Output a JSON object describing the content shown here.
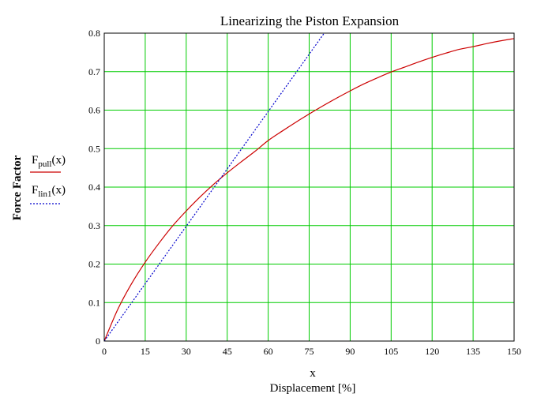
{
  "chart_data": {
    "type": "line",
    "title": "Linearizing the Piston Expansion",
    "xlabel_var": "x",
    "xlabel": "Displacement [%]",
    "ylabel": "Force Factor",
    "xlim": [
      0,
      150
    ],
    "ylim": [
      0,
      0.8
    ],
    "grid": true,
    "legend_position": "left",
    "xticks": [
      "0",
      "15",
      "30",
      "45",
      "60",
      "75",
      "90",
      "105",
      "120",
      "135",
      "150"
    ],
    "yticks": [
      "0",
      "0.1",
      "0.2",
      "0.3",
      "0.4",
      "0.5",
      "0.6",
      "0.7",
      "0.8"
    ],
    "series": [
      {
        "name_main": "F",
        "name_sub": "pull",
        "name_arg": "(x)",
        "color": "#cc0000",
        "dash": "solid",
        "x": [
          0,
          5,
          10,
          15,
          20,
          25,
          30,
          35,
          40,
          45,
          50,
          55,
          60,
          65,
          70,
          75,
          80,
          85,
          90,
          95,
          100,
          105,
          110,
          115,
          120,
          125,
          130,
          135,
          140,
          145,
          150
        ],
        "y": [
          0,
          0.083,
          0.149,
          0.205,
          0.254,
          0.299,
          0.338,
          0.374,
          0.407,
          0.437,
          0.465,
          0.492,
          0.521,
          0.545,
          0.568,
          0.59,
          0.611,
          0.631,
          0.65,
          0.668,
          0.684,
          0.699,
          0.712,
          0.725,
          0.737,
          0.748,
          0.758,
          0.765,
          0.773,
          0.78,
          0.786
        ]
      },
      {
        "name_main": "F",
        "name_sub": "lin1",
        "name_arg": "(x)",
        "color": "#0000cc",
        "dash": "dotted",
        "x": [
          0,
          80.5
        ],
        "y": [
          0,
          0.8
        ]
      }
    ]
  }
}
